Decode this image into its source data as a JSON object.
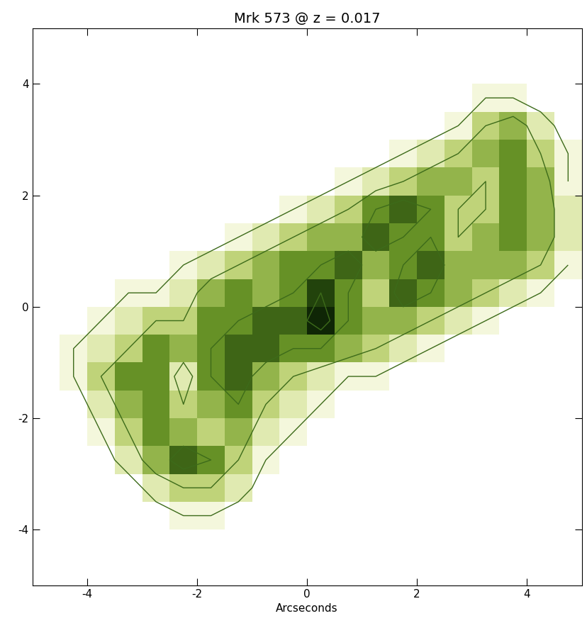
{
  "chart_data": {
    "type": "heatmap",
    "title": "Mrk 573 @ z = 0.017",
    "x_label": "Arcseconds",
    "xlim": [
      -5,
      5
    ],
    "ylim": [
      -5,
      5
    ],
    "xticks": [
      -4,
      -2,
      0,
      2,
      4
    ],
    "yticks": [
      -4,
      -2,
      0,
      2,
      4
    ],
    "x": [
      -4.75,
      -4.25,
      -3.75,
      -3.25,
      -2.75,
      -2.25,
      -1.75,
      -1.25,
      -0.75,
      -0.25,
      0.25,
      0.75,
      1.25,
      1.75,
      2.25,
      2.75,
      3.25,
      3.75,
      4.25,
      4.75
    ],
    "y": [
      4.75,
      4.25,
      3.75,
      3.25,
      2.75,
      2.25,
      1.75,
      1.25,
      0.75,
      0.25,
      -0.25,
      -0.75,
      -1.25,
      -1.75,
      -2.25,
      -2.75,
      -3.25,
      -3.75,
      -4.25,
      -4.75
    ],
    "cells": [
      [
        0,
        0,
        0,
        0,
        0,
        0,
        0,
        0,
        0,
        0,
        0,
        0,
        0,
        0,
        0,
        0,
        0,
        0,
        0,
        0
      ],
      [
        0,
        0,
        0,
        0,
        0,
        0,
        0,
        0,
        0,
        0,
        0,
        0,
        0,
        0,
        0,
        0,
        0,
        0,
        0,
        0
      ],
      [
        0,
        0,
        0,
        0,
        0,
        0,
        0,
        0,
        0,
        0,
        0,
        0,
        0,
        0,
        0,
        0,
        1,
        1,
        0,
        0
      ],
      [
        0,
        0,
        0,
        0,
        0,
        0,
        0,
        0,
        0,
        0,
        0,
        0,
        0,
        0,
        0,
        1,
        3,
        4,
        2,
        0
      ],
      [
        0,
        0,
        0,
        0,
        0,
        0,
        0,
        0,
        0,
        0,
        0,
        0,
        0,
        1,
        2,
        3,
        4,
        5,
        3,
        1
      ],
      [
        0,
        0,
        0,
        0,
        0,
        0,
        0,
        0,
        0,
        0,
        0,
        1,
        2,
        3,
        4,
        4,
        3,
        5,
        4,
        1
      ],
      [
        0,
        0,
        0,
        0,
        0,
        0,
        0,
        0,
        0,
        1,
        2,
        3,
        5,
        6,
        5,
        3,
        3,
        5,
        4,
        2
      ],
      [
        0,
        0,
        0,
        0,
        0,
        0,
        0,
        1,
        2,
        3,
        4,
        4,
        6,
        5,
        5,
        3,
        4,
        5,
        4,
        2
      ],
      [
        0,
        0,
        0,
        0,
        0,
        1,
        2,
        3,
        4,
        5,
        5,
        6,
        4,
        5,
        6,
        4,
        4,
        4,
        3,
        1
      ],
      [
        0,
        0,
        0,
        1,
        1,
        2,
        4,
        5,
        4,
        5,
        7,
        5,
        3,
        6,
        5,
        4,
        3,
        2,
        1,
        0
      ],
      [
        0,
        0,
        1,
        2,
        3,
        3,
        5,
        5,
        6,
        6,
        8,
        5,
        4,
        4,
        3,
        2,
        1,
        0,
        0,
        0
      ],
      [
        0,
        1,
        2,
        3,
        5,
        4,
        5,
        6,
        6,
        5,
        5,
        4,
        3,
        2,
        1,
        0,
        0,
        0,
        0,
        0
      ],
      [
        0,
        1,
        3,
        5,
        5,
        2,
        5,
        6,
        4,
        3,
        2,
        1,
        1,
        0,
        0,
        0,
        0,
        0,
        0,
        0
      ],
      [
        0,
        0,
        2,
        4,
        5,
        3,
        4,
        5,
        3,
        2,
        1,
        0,
        0,
        0,
        0,
        0,
        0,
        0,
        0,
        0
      ],
      [
        0,
        0,
        1,
        3,
        5,
        4,
        3,
        4,
        2,
        1,
        0,
        0,
        0,
        0,
        0,
        0,
        0,
        0,
        0,
        0
      ],
      [
        0,
        0,
        0,
        2,
        4,
        6,
        5,
        3,
        1,
        0,
        0,
        0,
        0,
        0,
        0,
        0,
        0,
        0,
        0,
        0
      ],
      [
        0,
        0,
        0,
        0,
        2,
        3,
        3,
        2,
        0,
        0,
        0,
        0,
        0,
        0,
        0,
        0,
        0,
        0,
        0,
        0
      ],
      [
        0,
        0,
        0,
        0,
        0,
        1,
        1,
        0,
        0,
        0,
        0,
        0,
        0,
        0,
        0,
        0,
        0,
        0,
        0,
        0
      ],
      [
        0,
        0,
        0,
        0,
        0,
        0,
        0,
        0,
        0,
        0,
        0,
        0,
        0,
        0,
        0,
        0,
        0,
        0,
        0,
        0
      ],
      [
        0,
        0,
        0,
        0,
        0,
        0,
        0,
        0,
        0,
        0,
        0,
        0,
        0,
        0,
        0,
        0,
        0,
        0,
        0,
        0
      ]
    ],
    "color_range": [
      0,
      8
    ],
    "contour_levels": [
      1,
      3,
      5,
      7
    ]
  }
}
